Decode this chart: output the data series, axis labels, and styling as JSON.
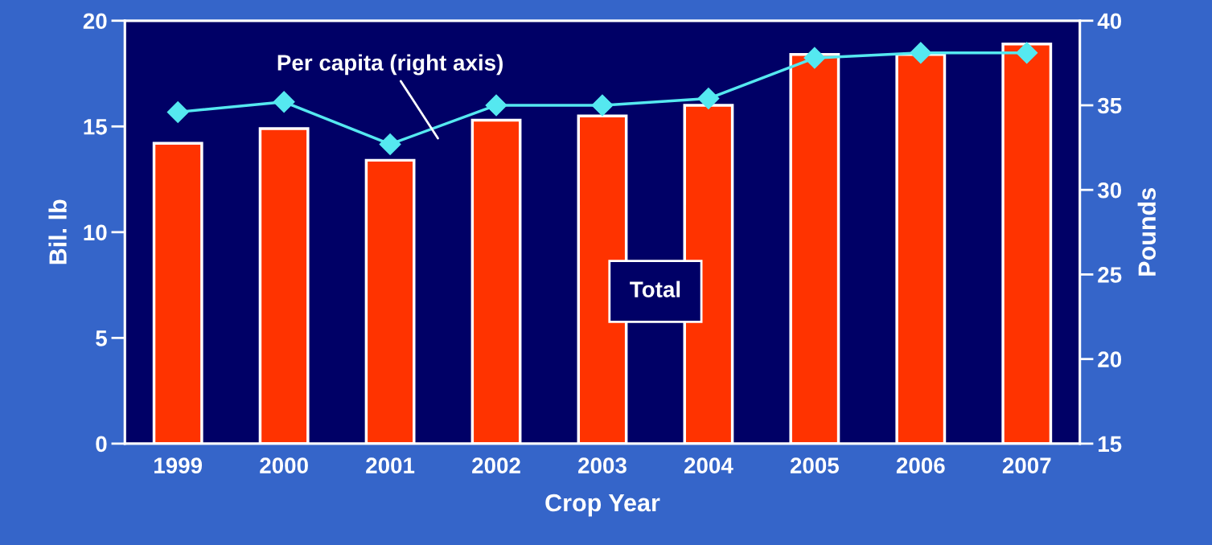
{
  "chart_data": {
    "type": "bar",
    "categories": [
      "1999",
      "2000",
      "2001",
      "2002",
      "2003",
      "2004",
      "2005",
      "2006",
      "2007"
    ],
    "series": [
      {
        "color": "#ff3300",
        "values": [
          14.2,
          14.9,
          13.4,
          15.3,
          15.5,
          16.0,
          18.4,
          18.4,
          18.9
        ]
      },
      {
        "type": "line",
        "axis": "y2",
        "color": "#55e8f0",
        "marker": "diamond",
        "line_style": "solid",
        "values": [
          34.6,
          35.2,
          32.7,
          35.0,
          35.0,
          35.4,
          37.8,
          38.1,
          38.1
        ]
      }
    ],
    "xlabel": "Crop Year",
    "ylabel": "Bil. lb",
    "y2label": "Pounds",
    "ylim": [
      0,
      20
    ],
    "yticks": [
      0,
      5,
      10,
      15,
      20
    ],
    "y2lim": [
      15,
      40
    ],
    "y2ticks": [
      15,
      20,
      25,
      30,
      35,
      40
    ],
    "annotations": [
      "Per capita (right axis)",
      "Total"
    ],
    "grid": false,
    "legend": false
  }
}
